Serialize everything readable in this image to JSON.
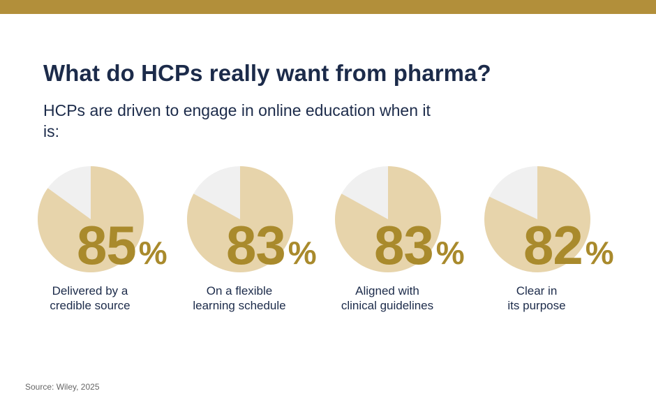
{
  "header": {
    "title": "What do HCPs really want from pharma?",
    "subtitle": "HCPs are driven to engage in online education when it is:"
  },
  "colors": {
    "bar": "#b28f3a",
    "pie_fill": "#e7d4ab",
    "pie_rest": "#f0f0f0",
    "value_text": "#a98a2c",
    "title_text": "#1c2b4a"
  },
  "chart_data": {
    "type": "pie",
    "unit": "%",
    "items": [
      {
        "value": 85,
        "label_display": "85",
        "caption_lines": [
          "Delivered by a",
          "credible source"
        ]
      },
      {
        "value": 83,
        "label_display": "83",
        "caption_lines": [
          "On a flexible",
          "learning schedule"
        ]
      },
      {
        "value": 83,
        "label_display": "83",
        "caption_lines": [
          "Aligned with",
          "clinical guidelines"
        ]
      },
      {
        "value": 82,
        "label_display": "82",
        "caption_lines": [
          "Clear in",
          "its purpose"
        ]
      }
    ]
  },
  "footer": {
    "source": "Source: Wiley, 2025"
  }
}
